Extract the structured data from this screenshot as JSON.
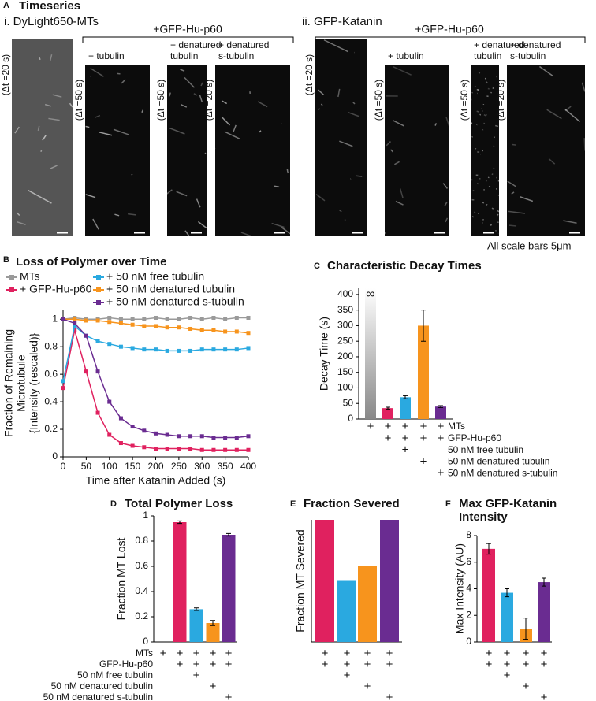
{
  "panel_a": {
    "label": "A",
    "title": "Timeseries",
    "note": "All scale bars 5μm",
    "sections": [
      {
        "title": "i. DyLight650-MTs",
        "treatment": "+GFP-Hu-p60",
        "columns": [
          {
            "label": [],
            "dt": "(Δt =20 s)"
          },
          {
            "label": [
              "+ tubulin"
            ],
            "dt": "(Δt =50 s)"
          },
          {
            "label": [
              "+ denatured",
              "tubulin"
            ],
            "dt": "(Δt =50 s)"
          },
          {
            "label": [
              "+ denatured",
              "s-tubulin"
            ],
            "dt": "(Δt =20 s)"
          }
        ]
      },
      {
        "title": "ii. GFP-Katanin",
        "treatment": "+GFP-Hu-p60",
        "columns": [
          {
            "label": [],
            "dt": "(Δt =20 s)"
          },
          {
            "label": [
              "+ tubulin"
            ],
            "dt": "(Δt =50 s)"
          },
          {
            "label": [
              "+ denatured",
              "tubulin"
            ],
            "dt": "(Δt =50 s)"
          },
          {
            "label": [
              "+ denatured",
              "s-tubulin"
            ],
            "dt": "(Δt =20 s)"
          }
        ]
      }
    ]
  },
  "chart_data": [
    {
      "panel": "B",
      "type": "line",
      "title": "Loss of Polymer over Time",
      "x_label": "Time after Katanin Added (s)",
      "y_label": [
        "Fraction of Remaining",
        "Microtubule",
        "{Intensity (rescaled)}"
      ],
      "x": [
        0,
        25,
        50,
        75,
        100,
        125,
        150,
        175,
        200,
        225,
        250,
        275,
        300,
        325,
        350,
        375,
        400
      ],
      "xlim": [
        0,
        400
      ],
      "xticks": [
        0,
        50,
        100,
        150,
        200,
        250,
        300,
        350,
        400
      ],
      "ylim": [
        0,
        1.07
      ],
      "yticks": [
        0,
        0.2,
        0.4,
        0.6,
        0.8,
        1
      ],
      "series": [
        {
          "name": "MTs",
          "color": "#9a9a9a",
          "values": [
            1,
            1.01,
            1,
            1,
            1.01,
            1,
            1,
            1,
            1.01,
            1,
            1,
            1.01,
            1,
            1.01,
            1,
            1.01,
            1.01
          ]
        },
        {
          "name": "+ GFP-Hu-p60",
          "color": "#e0215f",
          "values": [
            0.5,
            0.92,
            0.62,
            0.32,
            0.16,
            0.1,
            0.08,
            0.07,
            0.06,
            0.06,
            0.06,
            0.06,
            0.05,
            0.05,
            0.05,
            0.05,
            0.05
          ]
        },
        {
          "name": "+ 50 nM free tubulin",
          "color": "#2aa9e0",
          "values": [
            0.55,
            0.95,
            0.88,
            0.84,
            0.82,
            0.8,
            0.79,
            0.78,
            0.78,
            0.77,
            0.77,
            0.77,
            0.78,
            0.78,
            0.78,
            0.78,
            0.79
          ]
        },
        {
          "name": "+ 50 nM denatured tubulin",
          "color": "#f7941d",
          "values": [
            1,
            1,
            0.99,
            0.99,
            0.98,
            0.97,
            0.96,
            0.95,
            0.95,
            0.94,
            0.94,
            0.93,
            0.92,
            0.92,
            0.91,
            0.91,
            0.9
          ]
        },
        {
          "name": "+ 50 nM denatured s-tubulin",
          "color": "#6a2c91",
          "values": [
            1,
            0.97,
            0.88,
            0.62,
            0.4,
            0.28,
            0.22,
            0.19,
            0.17,
            0.16,
            0.15,
            0.15,
            0.15,
            0.14,
            0.14,
            0.14,
            0.15
          ]
        }
      ]
    },
    {
      "panel": "C",
      "type": "bar",
      "title": "Characteristic Decay Times",
      "y_label": "Decay Time (s)",
      "annotation": "∞",
      "values": [
        null,
        35,
        70,
        300,
        40
      ],
      "errors": [
        null,
        3,
        5,
        50,
        3
      ],
      "colors": [
        "#9a9a9a",
        "#e0215f",
        "#2aa9e0",
        "#f7941d",
        "#6a2c91"
      ],
      "ylim": [
        0,
        420
      ],
      "yticks": [
        0,
        50,
        100,
        150,
        200,
        250,
        300,
        350,
        400
      ],
      "row_labels": [
        "MTs",
        "GFP-Hu-p60",
        "50 nM free tubulin",
        "50 nM denatured tubulin",
        "50 nM denatured s-tubulin"
      ],
      "design": [
        [
          "+",
          "+",
          "+",
          "+",
          "+"
        ],
        [
          null,
          "+",
          "+",
          "+",
          "+"
        ],
        [
          null,
          null,
          "+",
          null,
          null
        ],
        [
          null,
          null,
          null,
          "+",
          null
        ],
        [
          null,
          null,
          null,
          null,
          "+"
        ]
      ]
    },
    {
      "panel": "D",
      "type": "bar",
      "title": "Total Polymer Loss",
      "y_label": "Fraction MT Lost",
      "values": [
        null,
        0.95,
        0.26,
        0.15,
        0.85
      ],
      "errors": [
        null,
        0.01,
        0.01,
        0.02,
        0.01
      ],
      "colors": [
        "#9a9a9a",
        "#e0215f",
        "#2aa9e0",
        "#f7941d",
        "#6a2c91"
      ],
      "ylim": [
        0,
        1
      ],
      "yticks": [
        0,
        0.2,
        0.4,
        0.6,
        0.8,
        1
      ],
      "row_labels": [
        "MTs",
        "GFP-Hu-p60",
        "50 nM free tubulin",
        "50 nM denatured tubulin",
        "50 nM denatured s-tubulin"
      ],
      "design": [
        [
          "+",
          "+",
          "+",
          "+",
          "+"
        ],
        [
          null,
          "+",
          "+",
          "+",
          "+"
        ],
        [
          null,
          null,
          "+",
          null,
          null
        ],
        [
          null,
          null,
          null,
          "+",
          null
        ],
        [
          null,
          null,
          null,
          null,
          "+"
        ]
      ]
    },
    {
      "panel": "E",
      "type": "bar",
      "title": "Fraction Severed",
      "y_label": "Fraction MT Severed",
      "values": [
        1,
        0.5,
        0.62,
        1
      ],
      "colors": [
        "#e0215f",
        "#2aa9e0",
        "#f7941d",
        "#6a2c91"
      ],
      "ylim": [
        0,
        1
      ],
      "design": [
        [
          "+",
          "+",
          "+",
          "+"
        ],
        [
          "+",
          "+",
          "+",
          "+"
        ],
        [
          null,
          "+",
          null,
          null
        ],
        [
          null,
          null,
          "+",
          null
        ],
        [
          null,
          null,
          null,
          "+"
        ]
      ]
    },
    {
      "panel": "F",
      "type": "bar",
      "title": [
        "Max GFP-Katanin",
        "Intensity"
      ],
      "y_label": "Max Intensity (AU)",
      "values": [
        7,
        3.7,
        1,
        4.5
      ],
      "errors": [
        0.4,
        0.3,
        0.8,
        0.3
      ],
      "colors": [
        "#e0215f",
        "#2aa9e0",
        "#f7941d",
        "#6a2c91"
      ],
      "ylim": [
        0,
        8
      ],
      "yticks": [
        0,
        2,
        4,
        6,
        8
      ],
      "design": [
        [
          "+",
          "+",
          "+",
          "+"
        ],
        [
          "+",
          "+",
          "+",
          "+"
        ],
        [
          null,
          "+",
          null,
          null
        ],
        [
          null,
          null,
          "+",
          null
        ],
        [
          null,
          null,
          null,
          "+"
        ]
      ]
    }
  ]
}
